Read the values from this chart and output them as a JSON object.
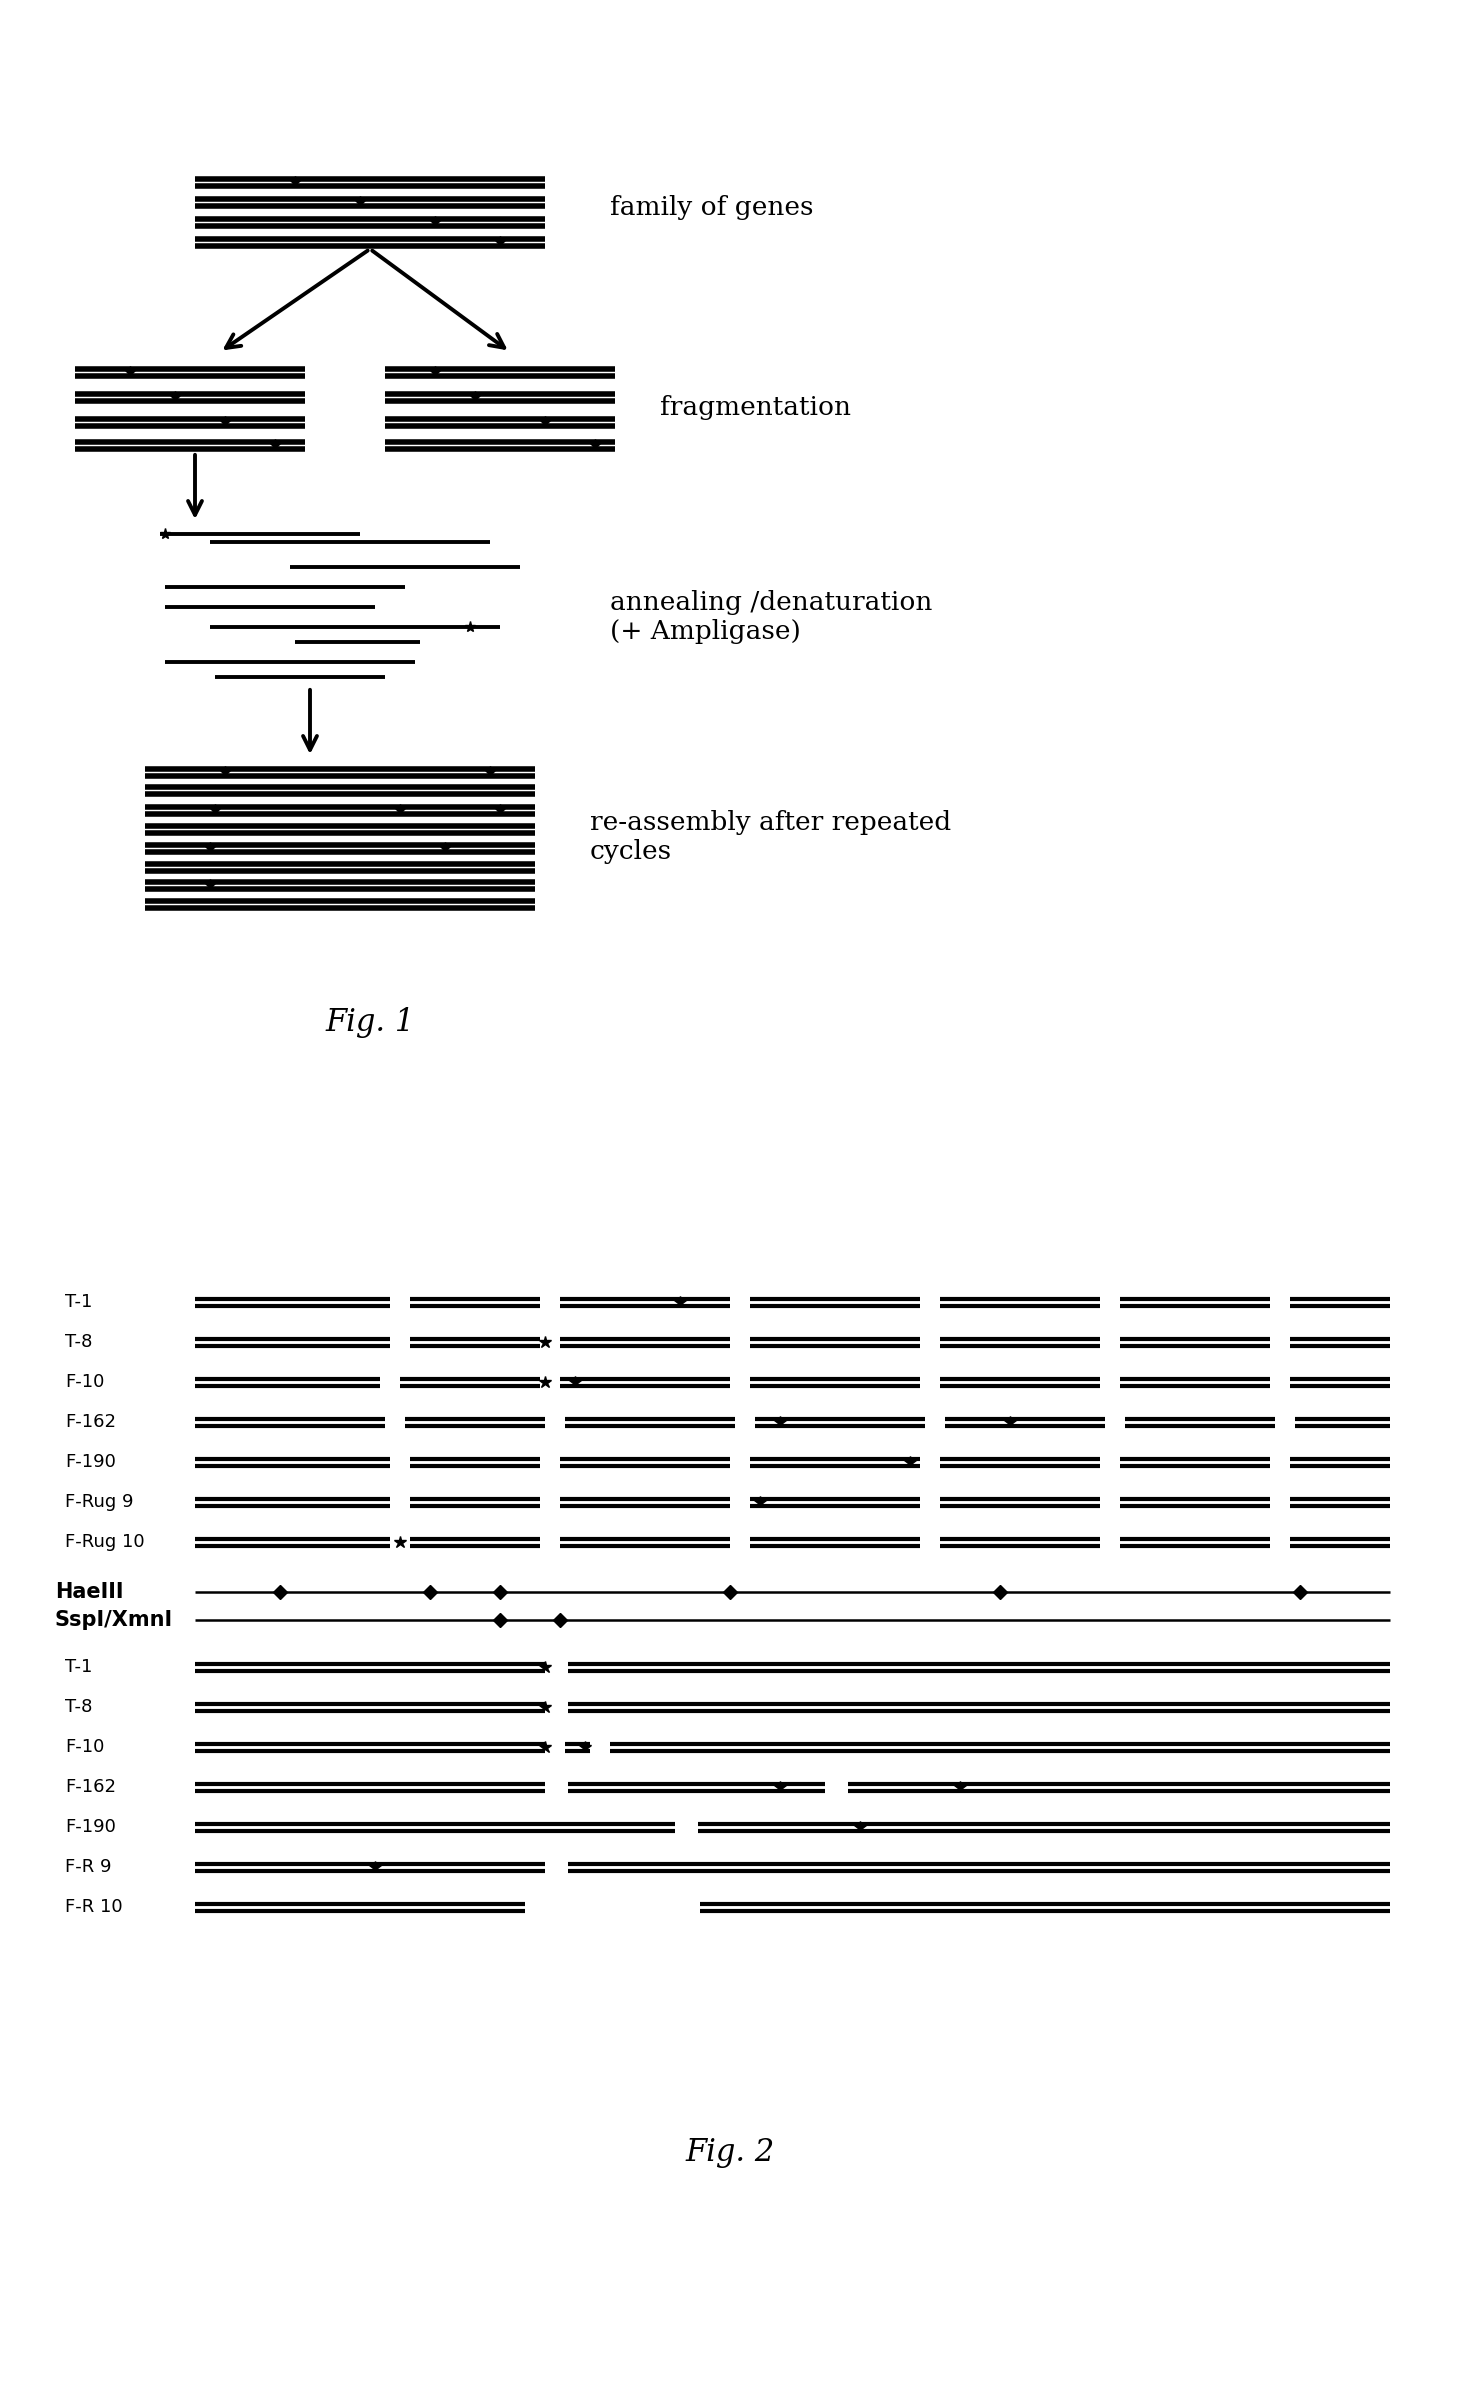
{
  "fig_width": 14.6,
  "fig_height": 23.82,
  "bg_color": "#ffffff",
  "line_color": "#000000",
  "fig1": {
    "title": "Fig. 1",
    "family_genes_label": "family of genes",
    "fragmentation_label": "fragmentation",
    "annealing_label": "annealing /denaturation\n(+ Ampligase)",
    "reassembly_label": "re-assembly after repeated\ncycles"
  },
  "fig2": {
    "title": "Fig. 2",
    "group1_labels": [
      "T-1",
      "T-8",
      "F-10",
      "F-162",
      "F-190",
      "F-Rug 9",
      "F-Rug 10"
    ],
    "group2_labels": [
      "HaeIII",
      "SspI/XmnI"
    ],
    "group3_labels": [
      "T-1",
      "T-8",
      "F-10",
      "F-162",
      "F-190",
      "F-R 9",
      "F-R 10"
    ]
  }
}
